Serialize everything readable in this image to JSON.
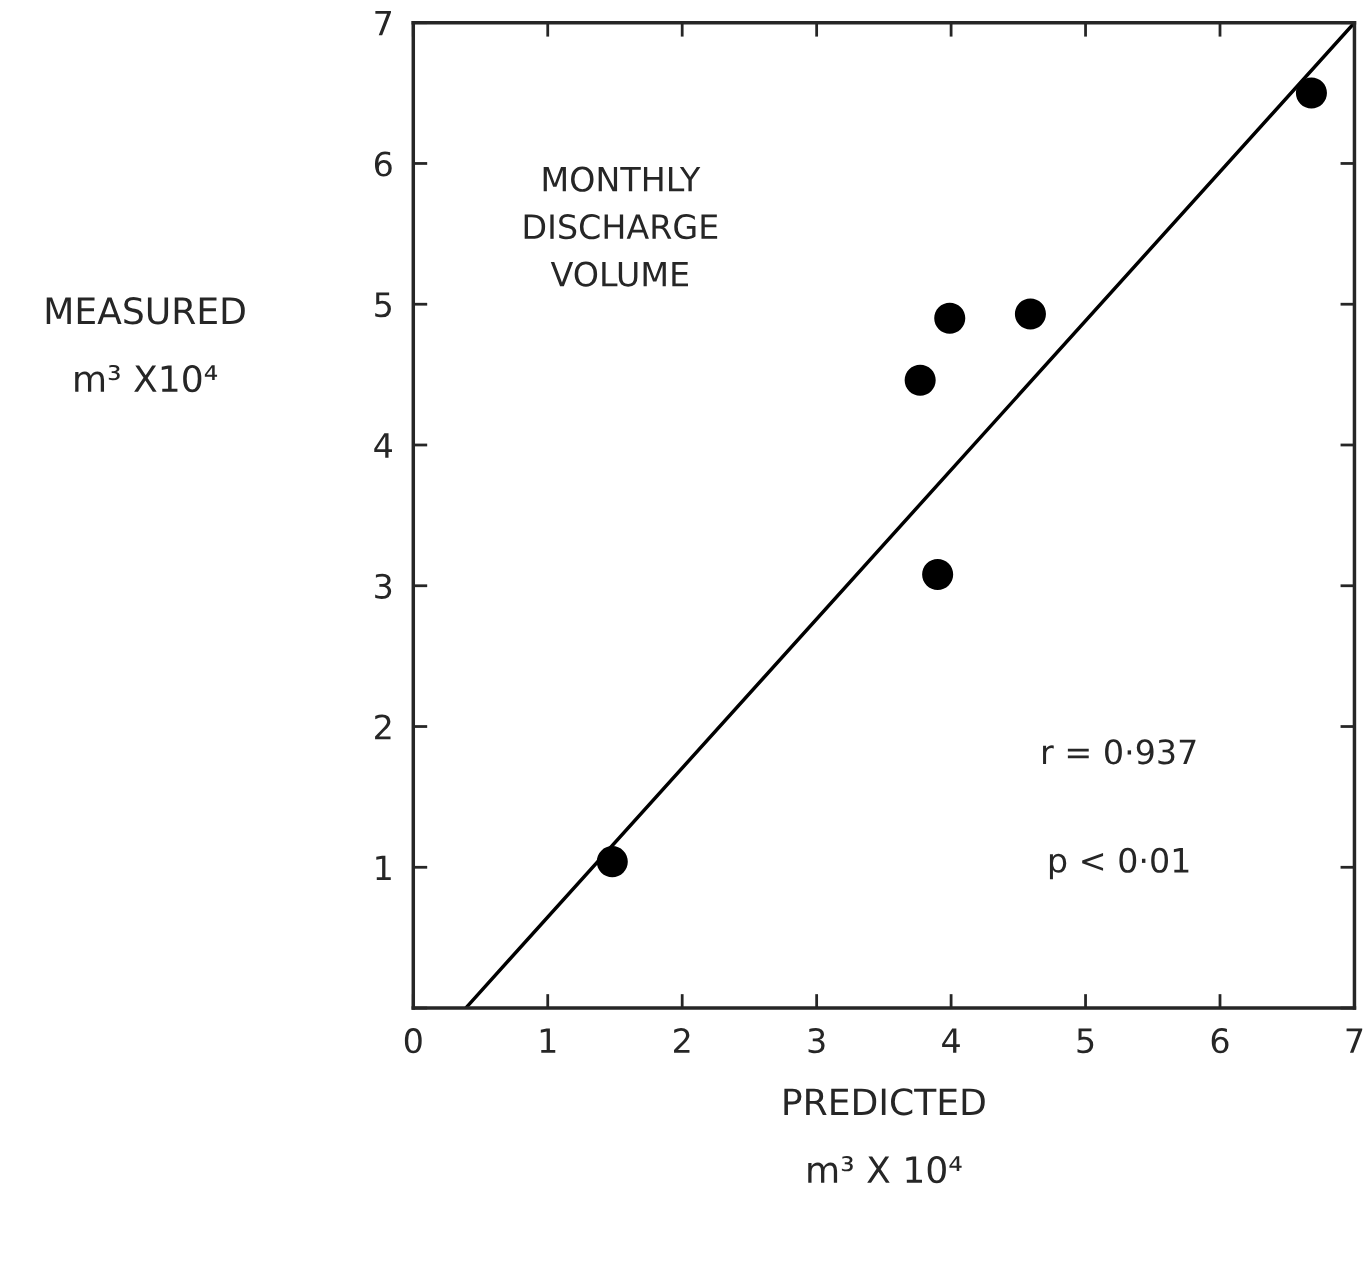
{
  "chart_data": {
    "type": "scatter",
    "xlabel": "PREDICTED\nm³ X 10⁴",
    "ylabel": "MEASURED\nm³ X10⁴",
    "series": [
      {
        "marker": "circle",
        "color": "#000000",
        "x": [
          1.48,
          3.77,
          3.99,
          4.59,
          3.9,
          6.68
        ],
        "values": [
          1.04,
          4.46,
          4.9,
          4.93,
          3.08,
          6.5
        ]
      },
      {
        "type": "line",
        "line_style": "solid",
        "color": "#000000",
        "x": [
          0.39,
          7
        ],
        "values": [
          0,
          7
        ]
      }
    ],
    "xlim": [
      0,
      7
    ],
    "ylim": [
      0,
      7
    ],
    "xticks": [
      0,
      1,
      2,
      3,
      4,
      5,
      6,
      7
    ],
    "yticks": [
      {
        "value": 0,
        "label": null
      },
      1,
      2,
      3,
      4,
      5,
      6,
      7
    ],
    "annotations": [
      "MONTHLY\nDISCHARGE\nVOLUME",
      "r = 0·937",
      "p < 0·01"
    ],
    "grid": false,
    "legend": false
  }
}
